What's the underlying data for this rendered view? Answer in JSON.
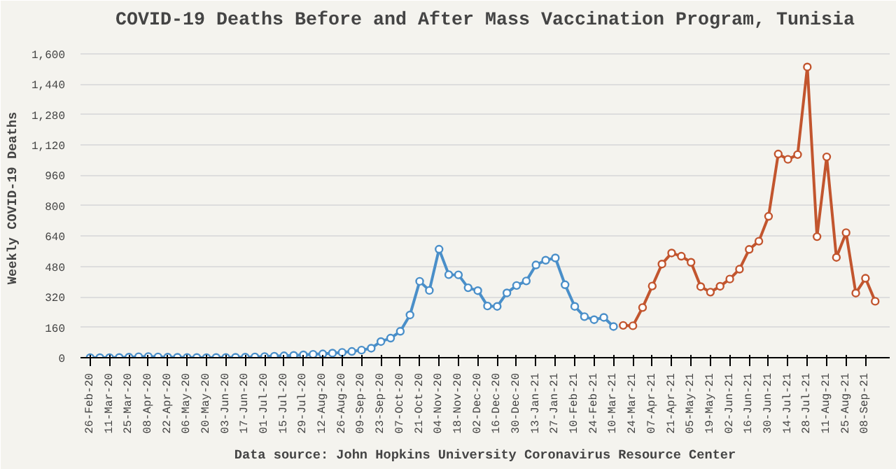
{
  "chart_data": {
    "type": "line",
    "title": "COVID-19 Deaths Before and After Mass Vaccination Program, Tunisia",
    "ylabel": "Weekly COVID-19 Deaths",
    "annotations": [
      "Data source: John Hopkins University Coronavirus Resource Center"
    ],
    "categories": [
      "26-Feb-20",
      null,
      "11-Mar-20",
      null,
      "25-Mar-20",
      null,
      "08-Apr-20",
      null,
      "22-Apr-20",
      null,
      "06-May-20",
      null,
      "20-May-20",
      null,
      "03-Jun-20",
      null,
      "17-Jun-20",
      null,
      "01-Jul-20",
      null,
      "15-Jul-20",
      null,
      "29-Jul-20",
      null,
      "12-Aug-20",
      null,
      "26-Aug-20",
      null,
      "09-Sep-20",
      null,
      "23-Sep-20",
      null,
      "07-Oct-20",
      null,
      "21-Oct-20",
      null,
      "04-Nov-20",
      null,
      "18-Nov-20",
      null,
      "02-Dec-20",
      null,
      "16-Dec-20",
      null,
      "30-Dec-20",
      null,
      "13-Jan-21",
      null,
      "27-Jan-21",
      null,
      "10-Feb-21",
      null,
      "24-Feb-21",
      null,
      "10-Mar-21",
      null,
      "24-Mar-21",
      null,
      "07-Apr-21",
      null,
      "21-Apr-21",
      null,
      "05-May-21",
      null,
      "19-May-21",
      null,
      "02-Jun-21",
      null,
      "16-Jun-21",
      null,
      "30-Jun-21",
      null,
      "14-Jul-21",
      null,
      "28-Jul-21",
      null,
      "11-Aug-21",
      null,
      "25-Aug-21",
      null,
      "08-Sep-21",
      null
    ],
    "series": [
      {
        "color": "#4a8fc9",
        "values": [
          0,
          0,
          0,
          1,
          3,
          5,
          6,
          4,
          3,
          2,
          1,
          1,
          0,
          1,
          1,
          2,
          3,
          4,
          6,
          8,
          10,
          12,
          15,
          18,
          20,
          24,
          28,
          33,
          40,
          50,
          85,
          103,
          139,
          225,
          402,
          354,
          571,
          437,
          436,
          368,
          353,
          272,
          270,
          341,
          380,
          404,
          488,
          513,
          525,
          384,
          270,
          216,
          200,
          212,
          164,
          null,
          null,
          null,
          null,
          null,
          null,
          null,
          null,
          null,
          null,
          null,
          null,
          null,
          null,
          null,
          null,
          null,
          null,
          null,
          null,
          null,
          null,
          null,
          null,
          null,
          null,
          null
        ]
      },
      {
        "color": "#c2552e",
        "values": [
          null,
          null,
          null,
          null,
          null,
          null,
          null,
          null,
          null,
          null,
          null,
          null,
          null,
          null,
          null,
          null,
          null,
          null,
          null,
          null,
          null,
          null,
          null,
          null,
          null,
          null,
          null,
          null,
          null,
          null,
          null,
          null,
          null,
          null,
          null,
          null,
          null,
          null,
          null,
          null,
          null,
          null,
          null,
          null,
          null,
          null,
          null,
          null,
          null,
          null,
          null,
          null,
          null,
          null,
          null,
          170,
          168,
          264,
          377,
          493,
          551,
          534,
          502,
          374,
          345,
          376,
          414,
          466,
          570,
          613,
          744,
          1072,
          1044,
          1069,
          1530,
          637,
          1057,
          528,
          658,
          340,
          418,
          297
        ]
      }
    ],
    "ylim": [
      0,
      1680
    ],
    "yticks": [
      0,
      {
        "value": 160,
        "label": "160"
      },
      {
        "value": 320,
        "label": "320"
      },
      {
        "value": 480,
        "label": "480"
      },
      {
        "value": 640,
        "label": "640"
      },
      {
        "value": 800,
        "label": "800"
      },
      {
        "value": 960,
        "label": "960"
      },
      {
        "value": 1120,
        "label": "1,120"
      },
      {
        "value": 1280,
        "label": "1,280"
      },
      {
        "value": 1440,
        "label": "1,440"
      },
      {
        "value": 1600,
        "label": "1,600"
      }
    ],
    "grid": "y",
    "marker": "circle",
    "line_style": "solid"
  }
}
